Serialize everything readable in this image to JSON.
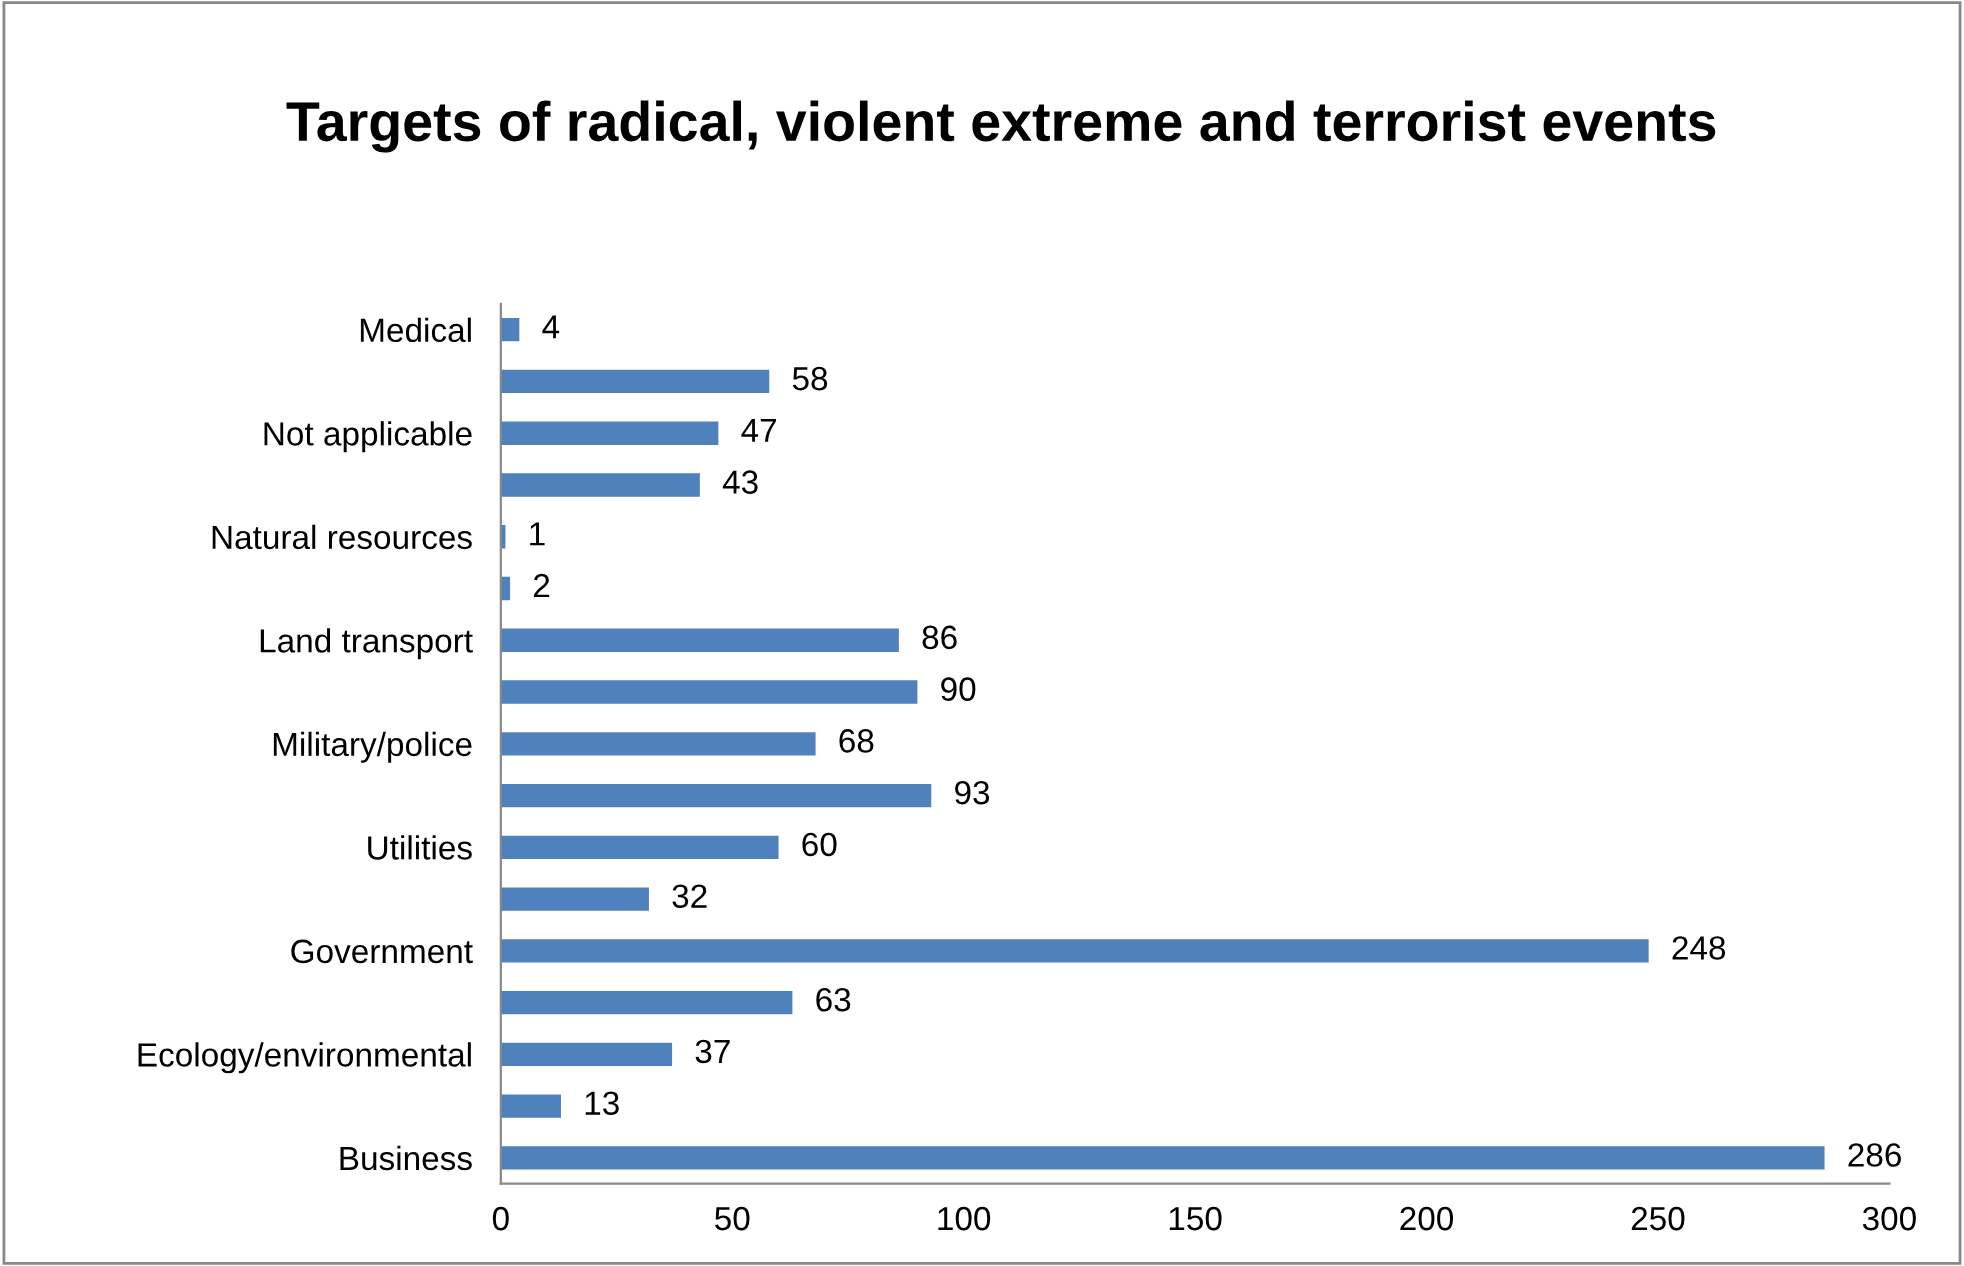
{
  "chart_data": {
    "type": "bar",
    "orientation": "horizontal",
    "title": "Targets of radical, violent extreme and terrorist events",
    "categories": [
      "Medical",
      null,
      "Not applicable",
      null,
      "Natural resources",
      null,
      "Land transport",
      null,
      "Military/police",
      null,
      "Utilities",
      null,
      "Government",
      null,
      "Ecology/environmental",
      null,
      "Business"
    ],
    "values": [
      4,
      58,
      47,
      43,
      1,
      2,
      86,
      90,
      68,
      93,
      60,
      32,
      248,
      63,
      37,
      13,
      286
    ],
    "color": "#4f81bd",
    "xlim": [
      0,
      300
    ],
    "xticks": [
      0,
      50,
      100,
      150,
      200,
      250,
      300
    ],
    "grid": false,
    "data_labels": true
  }
}
